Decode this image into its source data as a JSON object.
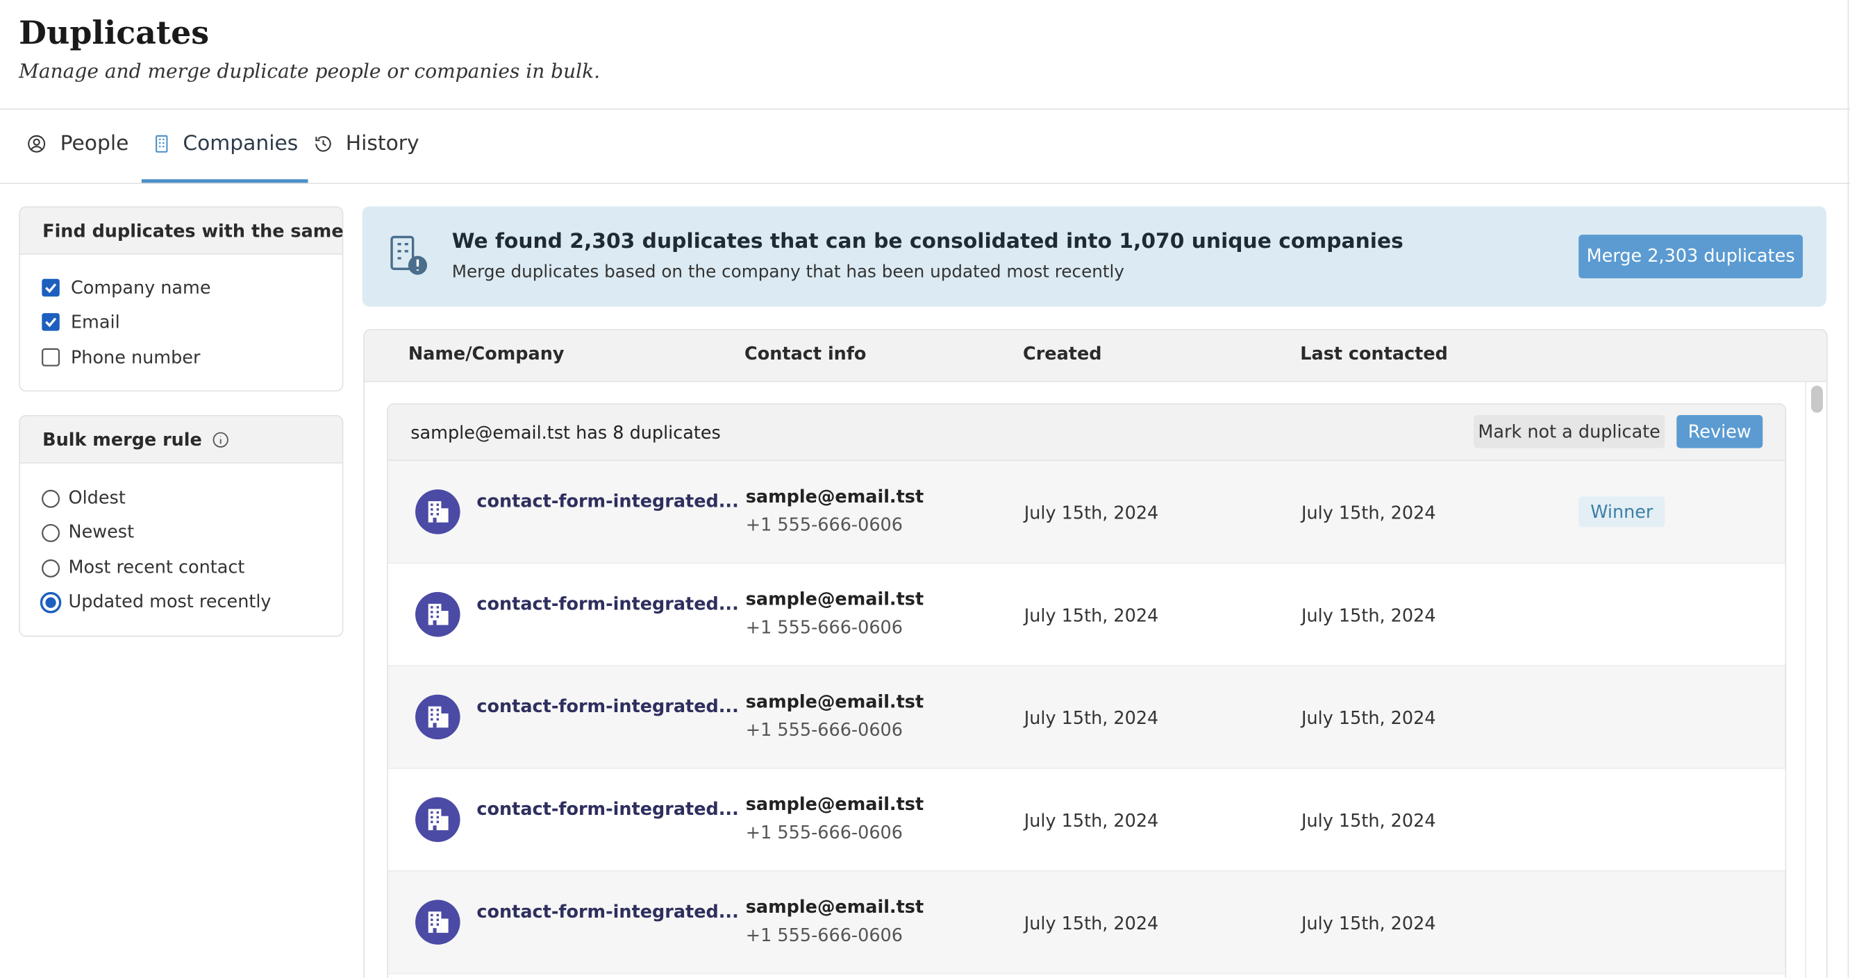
{
  "header": {
    "title": "Duplicates",
    "subtitle": "Manage and merge duplicate people or companies in bulk."
  },
  "tabs": [
    {
      "label": "People",
      "active": false
    },
    {
      "label": "Companies",
      "active": true
    },
    {
      "label": "History",
      "active": false
    }
  ],
  "filters": {
    "title": "Find duplicates with the same",
    "options": [
      {
        "label": "Company name",
        "checked": true
      },
      {
        "label": "Email",
        "checked": true
      },
      {
        "label": "Phone number",
        "checked": false
      }
    ]
  },
  "merge_rule": {
    "title": "Bulk merge rule",
    "options": [
      {
        "label": "Oldest",
        "checked": false
      },
      {
        "label": "Newest",
        "checked": false
      },
      {
        "label": "Most recent contact",
        "checked": false
      },
      {
        "label": "Updated most recently",
        "checked": true
      }
    ]
  },
  "banner": {
    "title": "We found 2,303 duplicates that can be consolidated into 1,070 unique companies",
    "subtitle": "Merge duplicates based on the company that has been updated most recently",
    "button": "Merge 2,303 duplicates"
  },
  "table": {
    "columns": [
      "Name/Company",
      "Contact info",
      "Created",
      "Last contacted"
    ],
    "group": {
      "label": "sample@email.tst has 8 duplicates",
      "actions": [
        "Mark not a duplicate",
        "Review"
      ],
      "rows": [
        {
          "name": "contact-form-integrated...",
          "email": "sample@email.tst",
          "phone": "+1 555-666-0606",
          "created": "July 15th, 2024",
          "last_contacted": "July 15th, 2024",
          "badge": "Winner"
        },
        {
          "name": "contact-form-integrated...",
          "email": "sample@email.tst",
          "phone": "+1 555-666-0606",
          "created": "July 15th, 2024",
          "last_contacted": "July 15th, 2024"
        },
        {
          "name": "contact-form-integrated...",
          "email": "sample@email.tst",
          "phone": "+1 555-666-0606",
          "created": "July 15th, 2024",
          "last_contacted": "July 15th, 2024"
        },
        {
          "name": "contact-form-integrated...",
          "email": "sample@email.tst",
          "phone": "+1 555-666-0606",
          "created": "July 15th, 2024",
          "last_contacted": "July 15th, 2024"
        },
        {
          "name": "contact-form-integrated...",
          "email": "sample@email.tst",
          "phone": "+1 555-666-0606",
          "created": "July 15th, 2024",
          "last_contacted": "July 15th, 2024"
        }
      ]
    }
  }
}
